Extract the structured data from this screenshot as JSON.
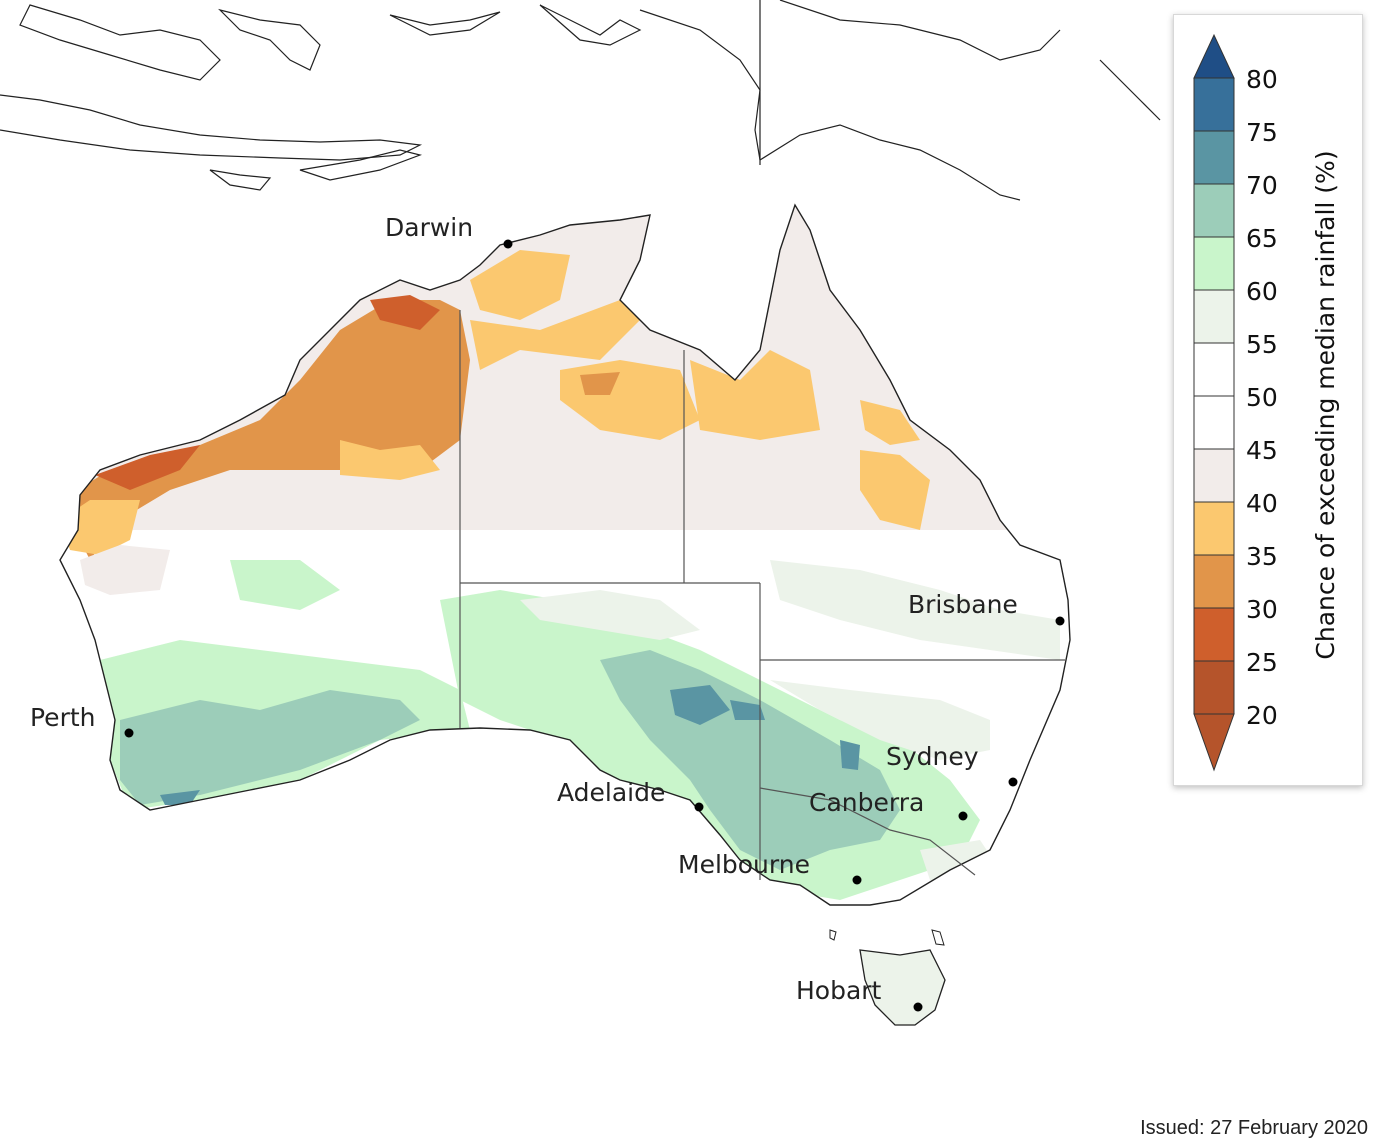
{
  "map": {
    "cities": [
      {
        "id": "darwin",
        "name": "Darwin"
      },
      {
        "id": "brisbane",
        "name": "Brisbane"
      },
      {
        "id": "perth",
        "name": "Perth"
      },
      {
        "id": "sydney",
        "name": "Sydney"
      },
      {
        "id": "adelaide",
        "name": "Adelaide"
      },
      {
        "id": "canberra",
        "name": "Canberra"
      },
      {
        "id": "melbourne",
        "name": "Melbourne"
      },
      {
        "id": "hobart",
        "name": "Hobart"
      }
    ]
  },
  "legend": {
    "title": "Chance of exceeding median rainfall (%)",
    "ticks": [
      "80",
      "75",
      "70",
      "65",
      "60",
      "55",
      "50",
      "45",
      "40",
      "35",
      "30",
      "25",
      "20"
    ],
    "colors": {
      "above_80": "#1f4e86",
      "75_80": "#37709a",
      "70_75": "#5a95a3",
      "65_70": "#9ccdb9",
      "60_65": "#c9f5cb",
      "55_60": "#ecf3ea",
      "50_55": "#ffffff",
      "45_50": "#ffffff",
      "40_45": "#f2ecea",
      "35_40": "#fbc86f",
      "30_35": "#e1954a",
      "25_30": "#cf5f2c",
      "below_25": "#b5542b"
    }
  },
  "footer": {
    "issued": "Issued: 27 February 2020"
  }
}
